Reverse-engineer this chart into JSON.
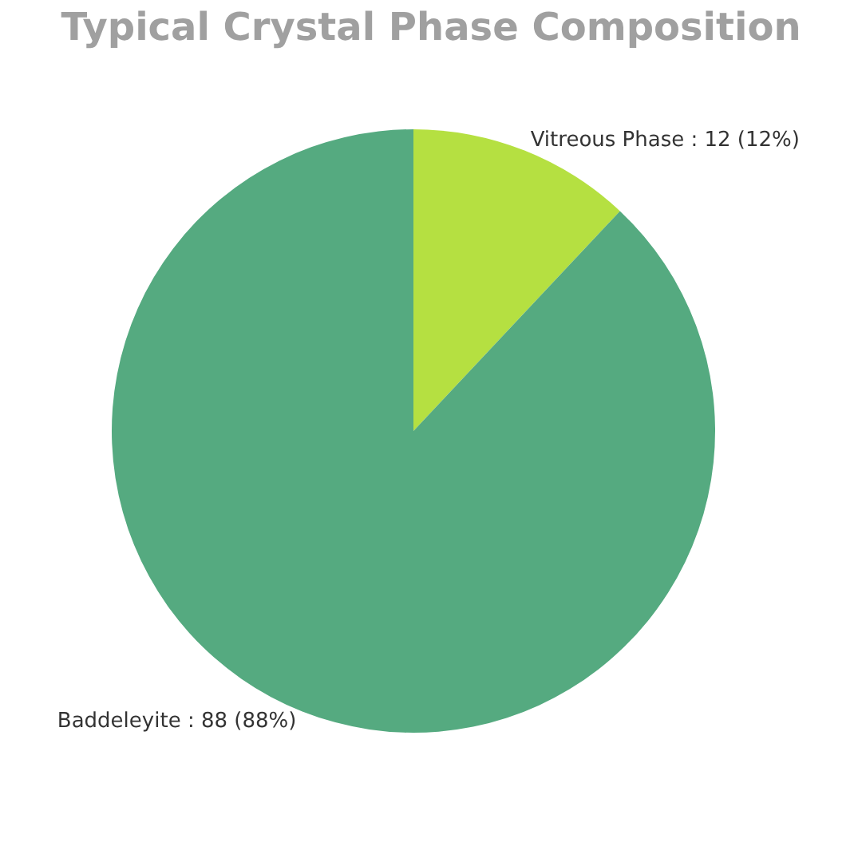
{
  "chart_data": {
    "type": "pie",
    "title": "Typical Crystal Phase Composition",
    "categories": [
      "Vitreous Phase",
      "Baddeleyite"
    ],
    "values": [
      12,
      88
    ],
    "colors": [
      "#b5e041",
      "#55aa80"
    ],
    "value_labels": [
      "12 (12%)",
      "88 (88%)"
    ]
  }
}
